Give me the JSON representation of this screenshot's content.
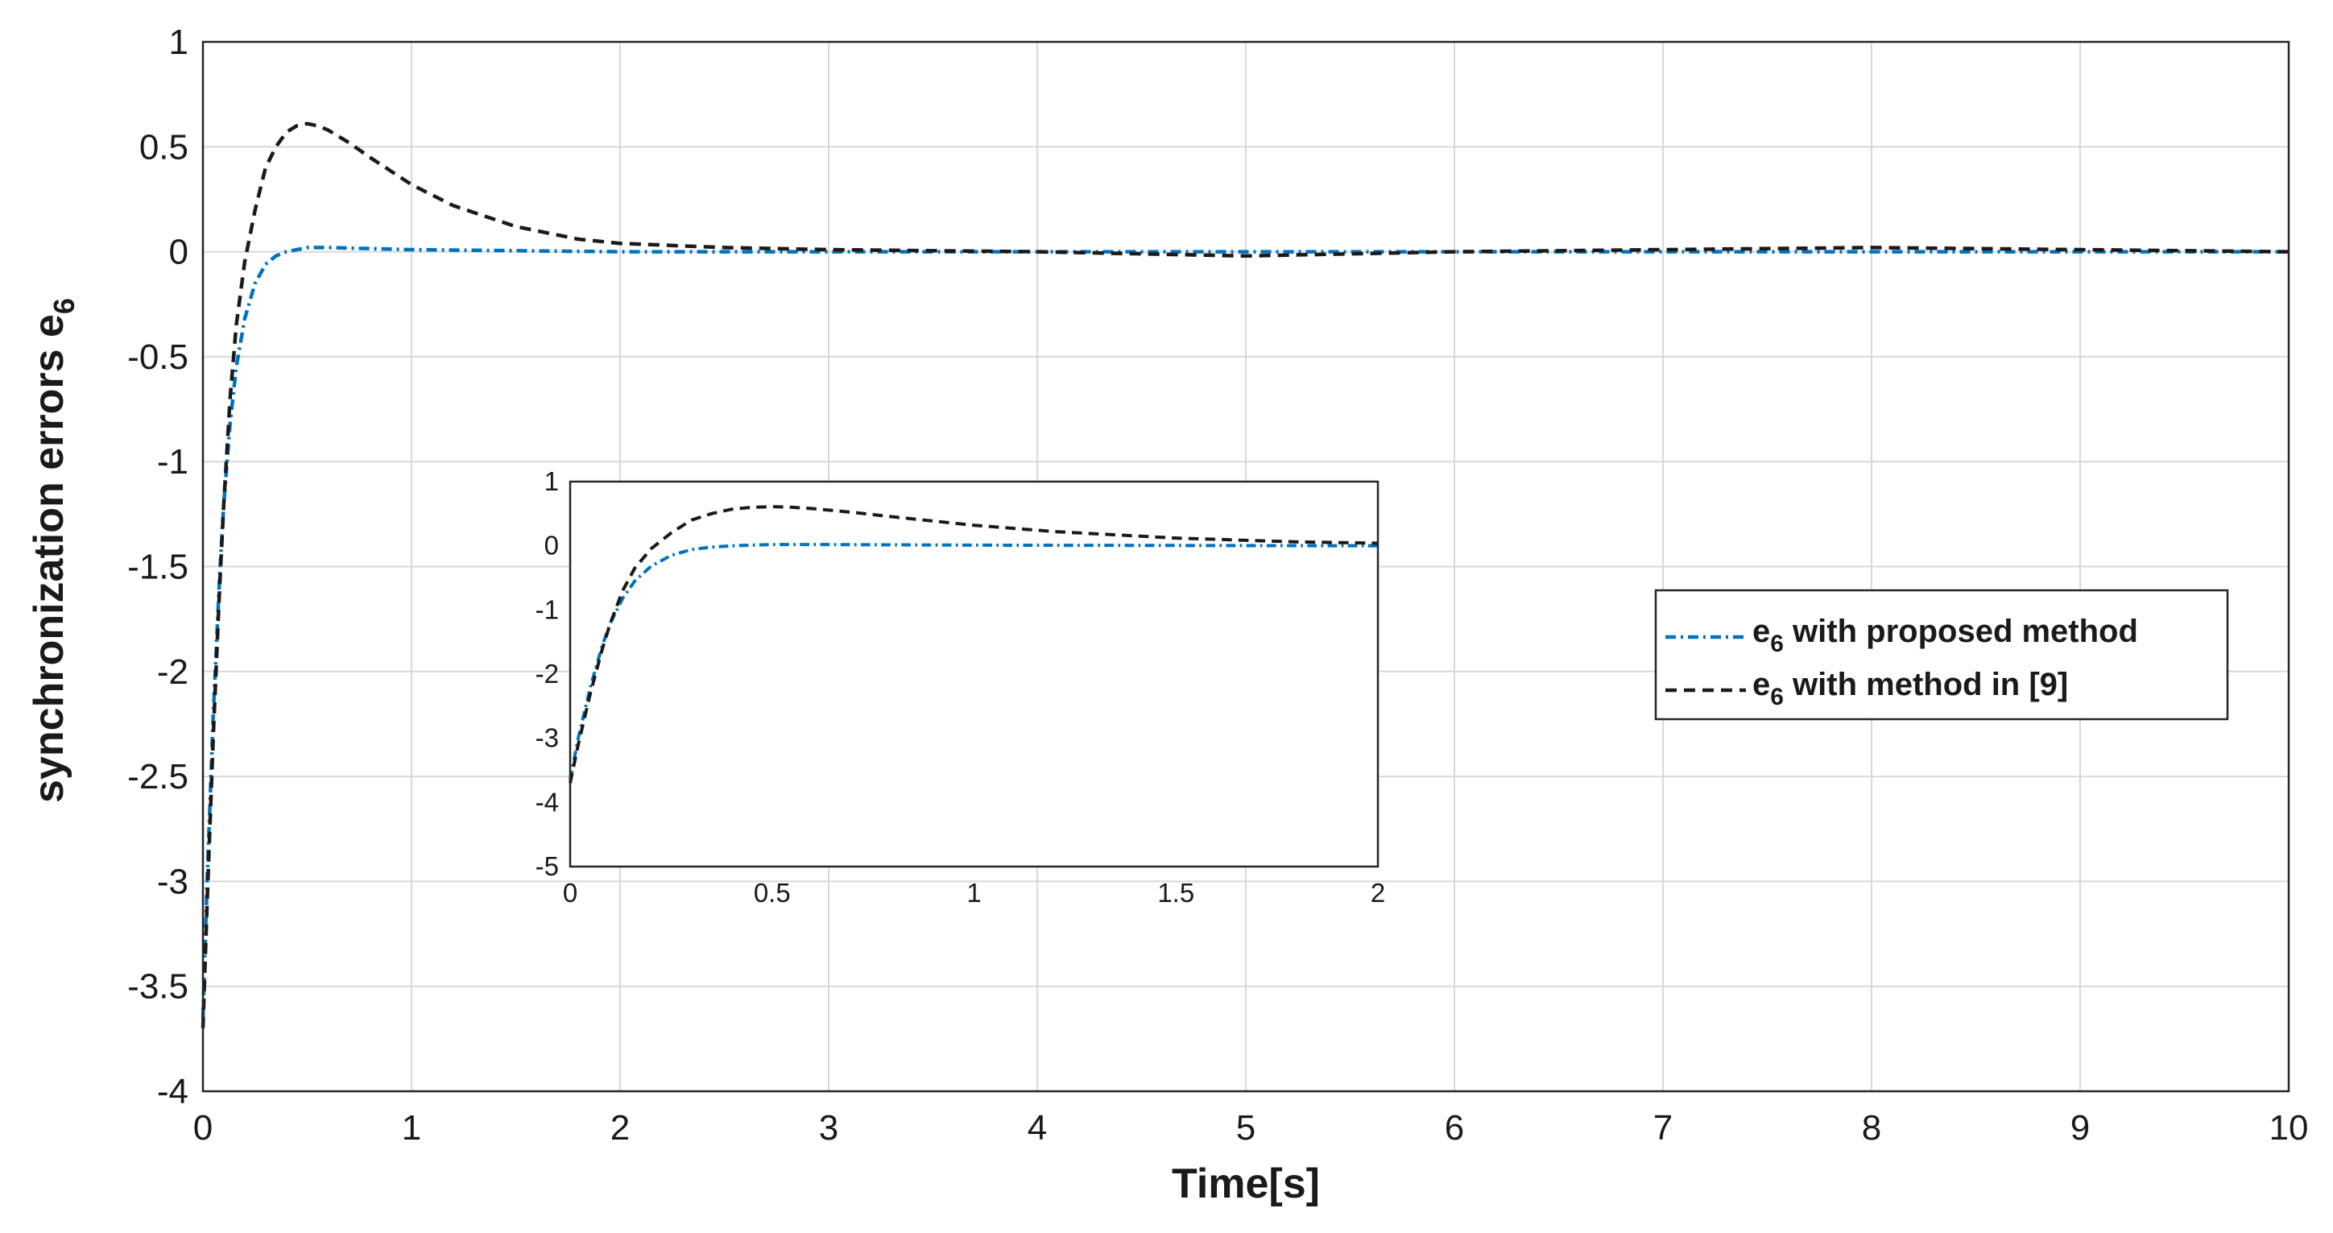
{
  "chart_data": [
    {
      "type": "line",
      "id": "main",
      "xlabel": "Time[s]",
      "ylabel": "synchronization errors  e",
      "ylabel_sub": "6",
      "xlim": [
        0,
        10
      ],
      "ylim": [
        -4,
        1
      ],
      "xticks": [
        0,
        1,
        2,
        3,
        4,
        5,
        6,
        7,
        8,
        9,
        10
      ],
      "yticks": [
        1,
        0.5,
        0,
        -0.5,
        -1,
        -1.5,
        -2,
        -2.5,
        -3,
        -3.5,
        -4
      ],
      "grid": true,
      "legend_position": "right",
      "series": [
        {
          "name": "e",
          "name_sub": "6",
          "name_suffix": " with proposed method",
          "color": "#0072bd",
          "style": "dash-dot",
          "x": [
            0,
            0.02,
            0.05,
            0.08,
            0.1,
            0.13,
            0.16,
            0.2,
            0.25,
            0.3,
            0.35,
            0.4,
            0.45,
            0.5,
            0.6,
            0.8,
            1.0,
            1.5,
            2,
            3,
            4,
            5,
            6,
            7,
            8,
            9,
            10
          ],
          "y": [
            -3.65,
            -3.0,
            -2.2,
            -1.55,
            -1.2,
            -0.82,
            -0.55,
            -0.32,
            -0.15,
            -0.06,
            -0.02,
            0.0,
            0.01,
            0.02,
            0.02,
            0.015,
            0.01,
            0.005,
            0.0,
            0.0,
            0.0,
            0.0,
            0.0,
            0.0,
            0.0,
            0.0,
            0.0
          ]
        },
        {
          "name": "e",
          "name_sub": "6",
          "name_suffix": " with method in [9]",
          "color": "#1a1a1a",
          "style": "dashed",
          "x": [
            0,
            0.02,
            0.05,
            0.08,
            0.1,
            0.13,
            0.16,
            0.2,
            0.25,
            0.3,
            0.35,
            0.4,
            0.45,
            0.5,
            0.55,
            0.6,
            0.7,
            0.8,
            1.0,
            1.2,
            1.5,
            1.8,
            2.0,
            2.5,
            3,
            4,
            4.5,
            5,
            5.5,
            6,
            7,
            8,
            9,
            10
          ],
          "y": [
            -3.7,
            -3.1,
            -2.3,
            -1.6,
            -1.2,
            -0.7,
            -0.35,
            -0.05,
            0.2,
            0.4,
            0.5,
            0.57,
            0.6,
            0.61,
            0.6,
            0.58,
            0.52,
            0.45,
            0.32,
            0.22,
            0.12,
            0.06,
            0.04,
            0.02,
            0.01,
            0.0,
            -0.01,
            -0.02,
            -0.01,
            0.0,
            0.01,
            0.02,
            0.01,
            0.0
          ]
        }
      ]
    },
    {
      "type": "line",
      "id": "inset",
      "xlim": [
        0,
        2
      ],
      "ylim": [
        -5,
        1
      ],
      "xticks": [
        0,
        0.5,
        1,
        1.5,
        2
      ],
      "yticks": [
        1,
        0,
        -1,
        -2,
        -3,
        -4,
        -5
      ],
      "grid": false,
      "series": [
        {
          "color": "#0072bd",
          "style": "dash-dot",
          "x": [
            0,
            0.02,
            0.05,
            0.08,
            0.1,
            0.13,
            0.16,
            0.2,
            0.25,
            0.3,
            0.35,
            0.4,
            0.45,
            0.5,
            0.6,
            0.8,
            1.0,
            1.5,
            2
          ],
          "y": [
            -3.65,
            -3.0,
            -2.2,
            -1.55,
            -1.2,
            -0.82,
            -0.55,
            -0.32,
            -0.15,
            -0.06,
            -0.02,
            0.0,
            0.01,
            0.02,
            0.02,
            0.015,
            0.01,
            0.005,
            0.0
          ]
        },
        {
          "color": "#1a1a1a",
          "style": "dashed",
          "x": [
            0,
            0.02,
            0.05,
            0.08,
            0.1,
            0.13,
            0.16,
            0.2,
            0.25,
            0.3,
            0.35,
            0.4,
            0.45,
            0.5,
            0.55,
            0.6,
            0.7,
            0.8,
            1.0,
            1.2,
            1.5,
            1.8,
            2.0
          ],
          "y": [
            -3.7,
            -3.1,
            -2.3,
            -1.6,
            -1.2,
            -0.7,
            -0.35,
            -0.05,
            0.2,
            0.4,
            0.5,
            0.57,
            0.6,
            0.61,
            0.6,
            0.58,
            0.52,
            0.45,
            0.32,
            0.22,
            0.12,
            0.06,
            0.04
          ]
        }
      ]
    }
  ]
}
